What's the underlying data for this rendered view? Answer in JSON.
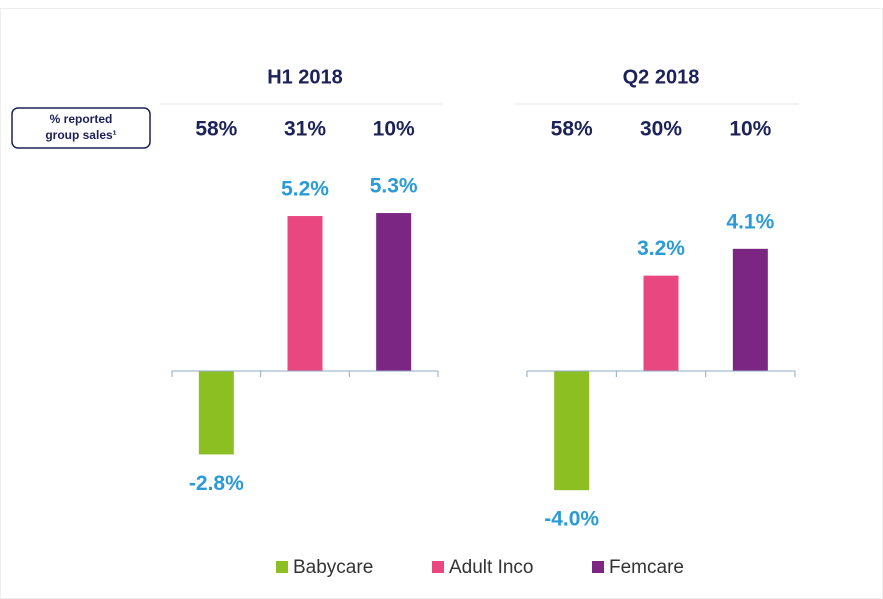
{
  "row_label": [
    "% reported",
    "group sales¹"
  ],
  "chart_data": [
    {
      "type": "bar",
      "title": "H1 2018",
      "categories": [
        "Babycare",
        "Adult Inco",
        "Femcare"
      ],
      "values": [
        -2.8,
        5.2,
        5.3
      ],
      "value_labels": [
        "-2.8%",
        "5.2%",
        "5.3%"
      ],
      "colors": [
        "#8cbf22",
        "#e8487f",
        "#7b2682"
      ],
      "group_sales": [
        58,
        31,
        10
      ],
      "group_sales_labels": [
        "58%",
        "31%",
        "10%"
      ],
      "ylim": [
        -4.5,
        6
      ]
    },
    {
      "type": "bar",
      "title": "Q2 2018",
      "categories": [
        "Babycare",
        "Adult Inco",
        "Femcare"
      ],
      "values": [
        -4.0,
        3.2,
        4.1
      ],
      "value_labels": [
        "-4.0%",
        "3.2%",
        "4.1%"
      ],
      "colors": [
        "#8cbf22",
        "#e8487f",
        "#7b2682"
      ],
      "group_sales": [
        58,
        30,
        10
      ],
      "group_sales_labels": [
        "58%",
        "30%",
        "10%"
      ],
      "ylim": [
        -4.5,
        6
      ]
    }
  ]
}
